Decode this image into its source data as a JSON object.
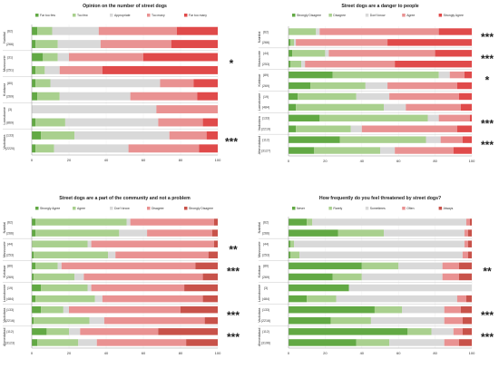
{
  "chart_data": [
    {
      "type": "bar",
      "stacked": "horizontal-100%",
      "title": "Opinion on the number of street dogs",
      "legend": [
        {
          "label": "Far too few",
          "color": "#62a944"
        },
        {
          "label": "Too few",
          "color": "#a9d08e"
        },
        {
          "label": "Appropriate",
          "color": "#d9d9d9"
        },
        {
          "label": "Too many",
          "color": "#e99292"
        },
        {
          "label": "Far too many",
          "color": "#e04a4a"
        }
      ],
      "groups": [
        "Nainital",
        "Mussoorie",
        "Kotdwar",
        "Lansdowne",
        "Vadodara"
      ],
      "rows": [
        {
          "label": "(62)",
          "values": [
            3,
            8,
            25,
            42,
            22
          ]
        },
        {
          "label": "(266)",
          "values": [
            2,
            12,
            23,
            38,
            25
          ]
        },
        {
          "label": "(31)",
          "values": [
            6,
            8,
            6,
            40,
            40
          ]
        },
        {
          "label": "(251)",
          "values": [
            2,
            5,
            8,
            23,
            62
          ]
        },
        {
          "label": "(80)",
          "values": [
            2,
            8,
            59,
            18,
            13
          ]
        },
        {
          "label": "(269)",
          "values": [
            3,
            12,
            38,
            36,
            11
          ]
        },
        {
          "label": "(3)",
          "values": [
            0,
            0,
            67,
            33,
            0
          ]
        },
        {
          "label": "(869)",
          "values": [
            2,
            16,
            50,
            24,
            8
          ]
        },
        {
          "label": "(133)",
          "values": [
            5,
            18,
            51,
            20,
            6
          ]
        },
        {
          "label": "(2220)",
          "values": [
            2,
            10,
            40,
            38,
            10
          ]
        }
      ],
      "significance": [
        "",
        "*",
        "",
        "",
        "***"
      ],
      "xlim": [
        0,
        100
      ],
      "xticks": [
        0,
        20,
        40,
        60,
        80,
        100
      ]
    },
    {
      "type": "bar",
      "stacked": "horizontal-100%",
      "title": "Street dogs are a danger to people",
      "legend": [
        {
          "label": "Strongly Disagree",
          "color": "#62a944"
        },
        {
          "label": "Disagree",
          "color": "#a9d08e"
        },
        {
          "label": "Don't know",
          "color": "#d9d9d9"
        },
        {
          "label": "Agree",
          "color": "#e99292"
        },
        {
          "label": "Strongly Agree",
          "color": "#e04a4a"
        }
      ],
      "groups": [
        "Nainital",
        "Mussoorie",
        "Kotdwar",
        "Lansdowne",
        "Vadodara",
        "Ahmedabad"
      ],
      "rows": [
        {
          "label": "(62)",
          "values": [
            0,
            15,
            2,
            65,
            18
          ]
        },
        {
          "label": "(266)",
          "values": [
            1,
            2,
            1,
            50,
            46
          ]
        },
        {
          "label": "(44)",
          "values": [
            2,
            18,
            2,
            58,
            20
          ]
        },
        {
          "label": "(253)",
          "values": [
            1,
            6,
            2,
            49,
            42
          ]
        },
        {
          "label": "(89)",
          "values": [
            24,
            58,
            6,
            8,
            4
          ]
        },
        {
          "label": "(269)",
          "values": [
            12,
            30,
            12,
            38,
            8
          ]
        },
        {
          "label": "(19)",
          "values": [
            5,
            32,
            18,
            38,
            7
          ]
        },
        {
          "label": "(484)",
          "values": [
            4,
            48,
            12,
            30,
            6
          ]
        },
        {
          "label": "(133)",
          "values": [
            17,
            59,
            6,
            17,
            1
          ]
        },
        {
          "label": "(2219)",
          "values": [
            4,
            30,
            6,
            52,
            8
          ]
        },
        {
          "label": "(112)",
          "values": [
            28,
            47,
            8,
            12,
            5
          ]
        },
        {
          "label": "(3127)",
          "values": [
            14,
            36,
            8,
            32,
            10
          ]
        }
      ],
      "significance": [
        "***",
        "***",
        "*",
        "",
        "***",
        "***"
      ],
      "xlim": [
        0,
        100
      ],
      "xticks": [
        0,
        20,
        40,
        60,
        80,
        100
      ]
    },
    {
      "type": "bar",
      "stacked": "horizontal-100%",
      "title": "Street dogs are a part of the community and not a problem",
      "legend": [
        {
          "label": "Strongly Agree",
          "color": "#62a944"
        },
        {
          "label": "Agree",
          "color": "#a9d08e"
        },
        {
          "label": "Don't know",
          "color": "#d9d9d9"
        },
        {
          "label": "Disagree",
          "color": "#e99292"
        },
        {
          "label": "Strongly Disagree",
          "color": "#c8524a"
        }
      ],
      "groups": [
        "Nainital",
        "Mussoorie",
        "Kotdwar",
        "Lansdowne",
        "Vadodara",
        "Ahmedabad"
      ],
      "rows": [
        {
          "label": "(62)",
          "values": [
            2,
            49,
            2,
            45,
            2
          ]
        },
        {
          "label": "(266)",
          "values": [
            2,
            45,
            15,
            35,
            3
          ]
        },
        {
          "label": "(44)",
          "values": [
            0,
            30,
            2,
            66,
            2
          ]
        },
        {
          "label": "(253)",
          "values": [
            1,
            40,
            4,
            50,
            5
          ]
        },
        {
          "label": "(80)",
          "values": [
            2,
            12,
            2,
            72,
            12
          ]
        },
        {
          "label": "(269)",
          "values": [
            1,
            22,
            5,
            64,
            8
          ]
        },
        {
          "label": "(19)",
          "values": [
            5,
            25,
            2,
            50,
            18
          ]
        },
        {
          "label": "(484)",
          "values": [
            2,
            32,
            4,
            54,
            8
          ]
        },
        {
          "label": "(133)",
          "values": [
            5,
            12,
            3,
            60,
            20
          ]
        },
        {
          "label": "(2216)",
          "values": [
            1,
            30,
            8,
            54,
            7
          ]
        },
        {
          "label": "(112)",
          "values": [
            8,
            12,
            6,
            42,
            32
          ]
        },
        {
          "label": "(3123)",
          "values": [
            3,
            22,
            10,
            48,
            17
          ]
        }
      ],
      "significance": [
        "",
        "**",
        "***",
        "",
        "***",
        "***"
      ],
      "xlim": [
        0,
        100
      ],
      "xticks": [
        0,
        20,
        40,
        60,
        80,
        100
      ]
    },
    {
      "type": "bar",
      "stacked": "horizontal-100%",
      "title": "How frequently do you feel threatened by street dogs?",
      "legend": [
        {
          "label": "Never",
          "color": "#62a944"
        },
        {
          "label": "Rarely",
          "color": "#a9d08e"
        },
        {
          "label": "Sometimes",
          "color": "#d9d9d9"
        },
        {
          "label": "Often",
          "color": "#e99292"
        },
        {
          "label": "Always",
          "color": "#c8524a"
        }
      ],
      "groups": [
        "Nainital",
        "Mussoorie",
        "Kotdwar",
        "Lansdowne",
        "Vadodara",
        "Ahmedabad"
      ],
      "rows": [
        {
          "label": "(62)",
          "values": [
            10,
            3,
            84,
            2,
            1
          ]
        },
        {
          "label": "(266)",
          "values": [
            27,
            25,
            44,
            2,
            2
          ]
        },
        {
          "label": "(44)",
          "values": [
            1,
            2,
            93,
            2,
            2
          ]
        },
        {
          "label": "(253)",
          "values": [
            1,
            5,
            89,
            3,
            2
          ]
        },
        {
          "label": "(80)",
          "values": [
            40,
            20,
            24,
            9,
            7
          ]
        },
        {
          "label": "(269)",
          "values": [
            24,
            16,
            44,
            9,
            7
          ]
        },
        {
          "label": "(3)",
          "values": [
            33,
            0,
            67,
            0,
            0
          ]
        },
        {
          "label": "(484)",
          "values": [
            10,
            16,
            66,
            5,
            3
          ]
        },
        {
          "label": "(133)",
          "values": [
            47,
            15,
            23,
            9,
            6
          ]
        },
        {
          "label": "(2216)",
          "values": [
            23,
            22,
            40,
            10,
            5
          ]
        },
        {
          "label": "(112)",
          "values": [
            65,
            13,
            12,
            5,
            5
          ]
        },
        {
          "label": "(3196)",
          "values": [
            37,
            18,
            30,
            8,
            7
          ]
        }
      ],
      "significance": [
        "",
        "",
        "**",
        "",
        "***",
        "***"
      ],
      "xlim": [
        0,
        100
      ],
      "xticks": [
        0,
        20,
        40,
        60,
        80,
        100
      ]
    }
  ]
}
